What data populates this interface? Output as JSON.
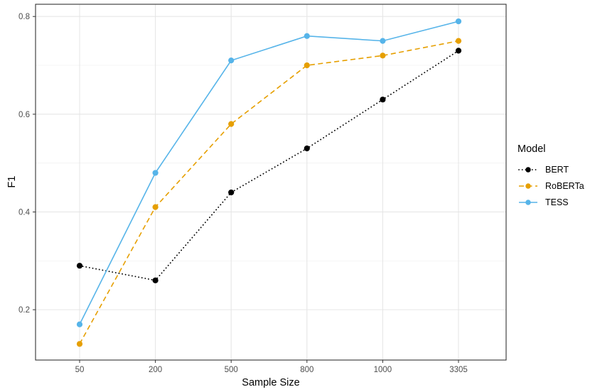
{
  "chart_data": {
    "type": "line",
    "title": "",
    "xlabel": "Sample Size",
    "ylabel": "F1",
    "categories": [
      "50",
      "200",
      "500",
      "800",
      "1000",
      "3305"
    ],
    "series": [
      {
        "name": "BERT",
        "color": "#000000",
        "linestyle": "dotted",
        "values": [
          0.29,
          0.26,
          0.44,
          0.53,
          0.63,
          0.73
        ]
      },
      {
        "name": "RoBERTa",
        "color": "#E69F00",
        "linestyle": "dashed",
        "values": [
          0.13,
          0.41,
          0.58,
          0.7,
          0.72,
          0.75
        ]
      },
      {
        "name": "TESS",
        "color": "#56B4E9",
        "linestyle": "solid",
        "values": [
          0.17,
          0.48,
          0.71,
          0.76,
          0.75,
          0.79
        ]
      }
    ],
    "yticks": [
      0.2,
      0.4,
      0.6,
      0.8
    ],
    "ytick_labels": [
      "0.2",
      "0.4",
      "0.6",
      "0.8"
    ],
    "yminor": [
      0.3,
      0.5,
      0.7
    ],
    "ylim": [
      0.097,
      0.825
    ],
    "grid": true,
    "legend": {
      "title": "Model",
      "position": "right"
    },
    "panel": {
      "background": "#ffffff",
      "border_color": "#333333",
      "grid_color": "#e6e6e6"
    }
  }
}
